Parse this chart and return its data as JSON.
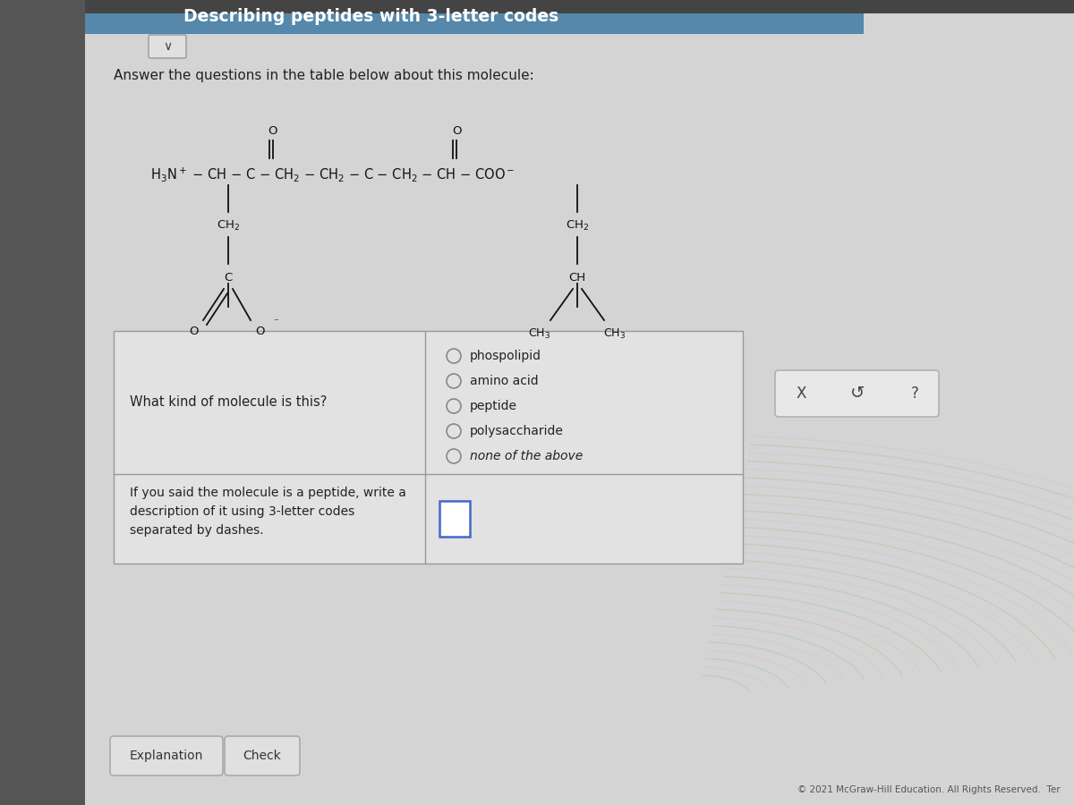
{
  "title": "Describing peptides with 3-letter codes",
  "subtitle": "Answer the questions in the table below about this molecule:",
  "bg_color": "#c8c8c8",
  "page_bg": "#d4d4d4",
  "header_color": "#5588aa",
  "header_text_color": "#ffffff",
  "question1": "What kind of molecule is this?",
  "options": [
    "phospolipid",
    "amino acid",
    "peptide",
    "polysaccharide",
    "none of the above"
  ],
  "question2_left": "If you said the molecule is a peptide, write a\ndescription of it using 3-letter codes\nseparated by dashes.",
  "footer": "© 2021 McGraw-Hill Education. All Rights Reserved.  Ter",
  "btn_explanation": "Explanation",
  "btn_check": "Check",
  "icon_x": "X",
  "icon_undo": "Ɔ",
  "icon_help": "?"
}
